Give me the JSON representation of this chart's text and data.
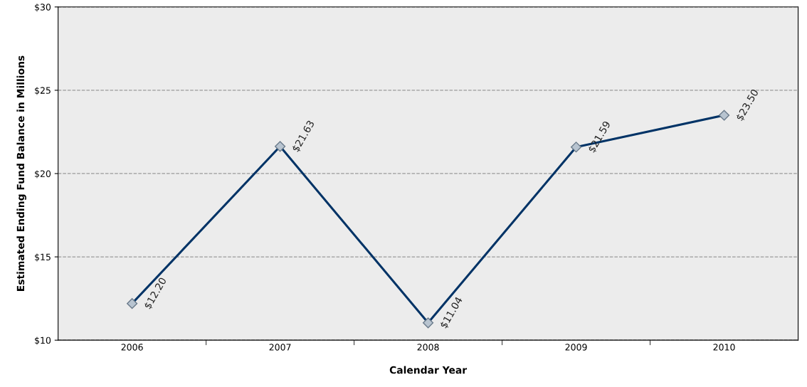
{
  "chart_data": {
    "type": "line",
    "xlabel": "Calendar Year",
    "ylabel": "Estimated Ending Fund Balance in Millions",
    "categories": [
      "2006",
      "2007",
      "2008",
      "2009",
      "2010"
    ],
    "series": [
      {
        "color": "#003366",
        "values": [
          12.2,
          21.63,
          11.04,
          21.59,
          23.5
        ],
        "value_labels": [
          "$12.20",
          "$21.63",
          "$11.04",
          "$21.59",
          "$23.50"
        ]
      }
    ],
    "ylim": [
      10,
      30
    ],
    "yticks": [
      {
        "value": 10,
        "label": "$10"
      },
      {
        "value": 15,
        "label": "$15"
      },
      {
        "value": 20,
        "label": "$20"
      },
      {
        "value": 25,
        "label": "$25"
      },
      {
        "value": 30,
        "label": "$30"
      }
    ],
    "grid": "y",
    "marker": "diamond",
    "line_style": "solid"
  }
}
